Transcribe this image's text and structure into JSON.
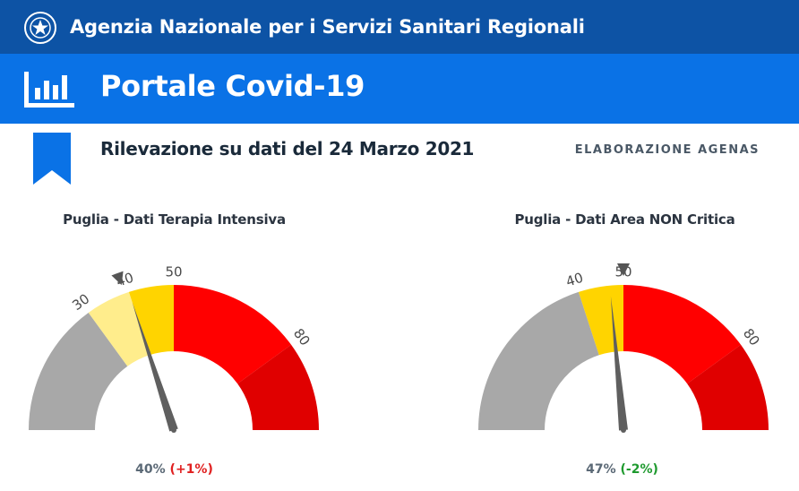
{
  "header": {
    "agency_title": "Agenzia Nazionale per i Servizi Sanitari Regionali",
    "portal_title": "Portale Covid-19",
    "colors": {
      "topbar": "#0d53a5",
      "portalbar": "#0a72e6"
    }
  },
  "info": {
    "survey_date": "Rilevazione su dati del 24 Marzo 2021",
    "elaborazione": "ELABORAZIONE AGENAS"
  },
  "gauges": [
    {
      "title": "Puglia - Dati Terapia Intensiva",
      "value": "40%",
      "delta": "(+1%)",
      "delta_trend": "up",
      "value_percent": 40,
      "previous_marker_percent": 39,
      "ticks": [
        "30",
        "40",
        "50",
        "80"
      ],
      "bands": [
        {
          "from": 0,
          "to": 30,
          "color": "#a8a8a8"
        },
        {
          "from": 30,
          "to": 40,
          "color": "#ffed8c"
        },
        {
          "from": 40,
          "to": 50,
          "color": "#ffd400"
        },
        {
          "from": 50,
          "to": 80,
          "color": "#ff0000"
        },
        {
          "from": 80,
          "to": 100,
          "color": "#e00000"
        }
      ]
    },
    {
      "title": "Puglia - Dati Area NON Critica",
      "value": "47%",
      "delta": "(-2%)",
      "delta_trend": "down",
      "value_percent": 47,
      "previous_marker_percent": 50,
      "ticks": [
        "40",
        "50",
        "80"
      ],
      "bands": [
        {
          "from": 0,
          "to": 40,
          "color": "#a8a8a8"
        },
        {
          "from": 40,
          "to": 50,
          "color": "#ffd400"
        },
        {
          "from": 50,
          "to": 80,
          "color": "#ff0000"
        },
        {
          "from": 80,
          "to": 100,
          "color": "#e00000"
        }
      ]
    }
  ]
}
